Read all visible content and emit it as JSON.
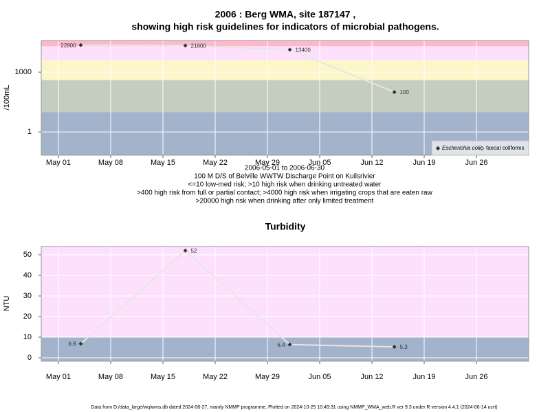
{
  "chart_data": [
    {
      "type": "line",
      "title": [
        "2006 : Berg WMA, site 187147 ,",
        "showing high risk guidelines for indicators of microbial pathogens."
      ],
      "notes": [
        "2006-05-01 to 2006-06-30",
        "100 M D/S of Belville WWTW Discharge Point on Kuilsrivier",
        "<=10 low-med risk; >10 high risk when drinking untreated water",
        ">400 high risk from full or partial contact; >4000 high risk when irrigating crops that are eaten raw",
        ">20000 high risk when drinking after only limited treatment"
      ],
      "y_label": "/100mL",
      "log_y": true,
      "grid": true,
      "legend": "bottom-right",
      "x": [
        3,
        17,
        31,
        45
      ],
      "xlim": [
        -2.3,
        63
      ],
      "xticks": [
        {
          "value": 0,
          "label": "May 01"
        },
        {
          "value": 7,
          "label": "May 08"
        },
        {
          "value": 14,
          "label": "May 15"
        },
        {
          "value": 21,
          "label": "May 22"
        },
        {
          "value": 28,
          "label": "May 29"
        },
        {
          "value": 35,
          "label": "Jun 05"
        },
        {
          "value": 42,
          "label": "Jun 12"
        },
        {
          "value": 49,
          "label": "Jun 19"
        },
        {
          "value": 56,
          "label": "Jun 26"
        }
      ],
      "ylim": [
        0.068,
        38700
      ],
      "yticks": [
        1,
        1000
      ],
      "band_edges": [
        10,
        400,
        4000,
        20000
      ],
      "band_colors": [
        "#a3b3cb",
        "#c5cdc0",
        "#fdf6c8",
        "#fde0fc",
        "#fdb9c9"
      ],
      "series": [
        {
          "name": "Escherichia coli",
          "color": "#333333",
          "values": [
            22800,
            21600,
            13400,
            100
          ]
        },
        {
          "name": "faecal coliforms",
          "color": "#333333",
          "values": [
            null,
            null,
            null,
            null
          ]
        }
      ]
    },
    {
      "type": "line",
      "title": [
        "Turbidity"
      ],
      "y_label": "NTU",
      "log_y": false,
      "grid": true,
      "x": [
        3,
        17,
        31,
        45
      ],
      "xlim": [
        -2.3,
        63
      ],
      "xticks": [
        {
          "value": 0,
          "label": "May 01"
        },
        {
          "value": 7,
          "label": "May 08"
        },
        {
          "value": 14,
          "label": "May 15"
        },
        {
          "value": 21,
          "label": "May 22"
        },
        {
          "value": 28,
          "label": "May 29"
        },
        {
          "value": 35,
          "label": "Jun 05"
        },
        {
          "value": 42,
          "label": "Jun 12"
        },
        {
          "value": 49,
          "label": "Jun 19"
        },
        {
          "value": 56,
          "label": "Jun 26"
        }
      ],
      "ylim": [
        -1.67,
        54
      ],
      "yticks": [
        0,
        10,
        20,
        30,
        40,
        50
      ],
      "band_edges": [
        10
      ],
      "band_colors": [
        "#a3b3cb",
        "#fde0fc"
      ],
      "series": [
        {
          "name": "Turbidity",
          "color": "#333333",
          "values": [
            6.8,
            52,
            6.4,
            5.3
          ]
        }
      ]
    }
  ],
  "footer": "Data from D:/data_large/wq/wms.db dated 2024-08-27, mainly NMMP programme. Plotted on 2024-10-25 10:49:31 using NMMP_WMA_web.R ver 9.3 under R version 4.4.1 (2024-06-14 ucrt)"
}
